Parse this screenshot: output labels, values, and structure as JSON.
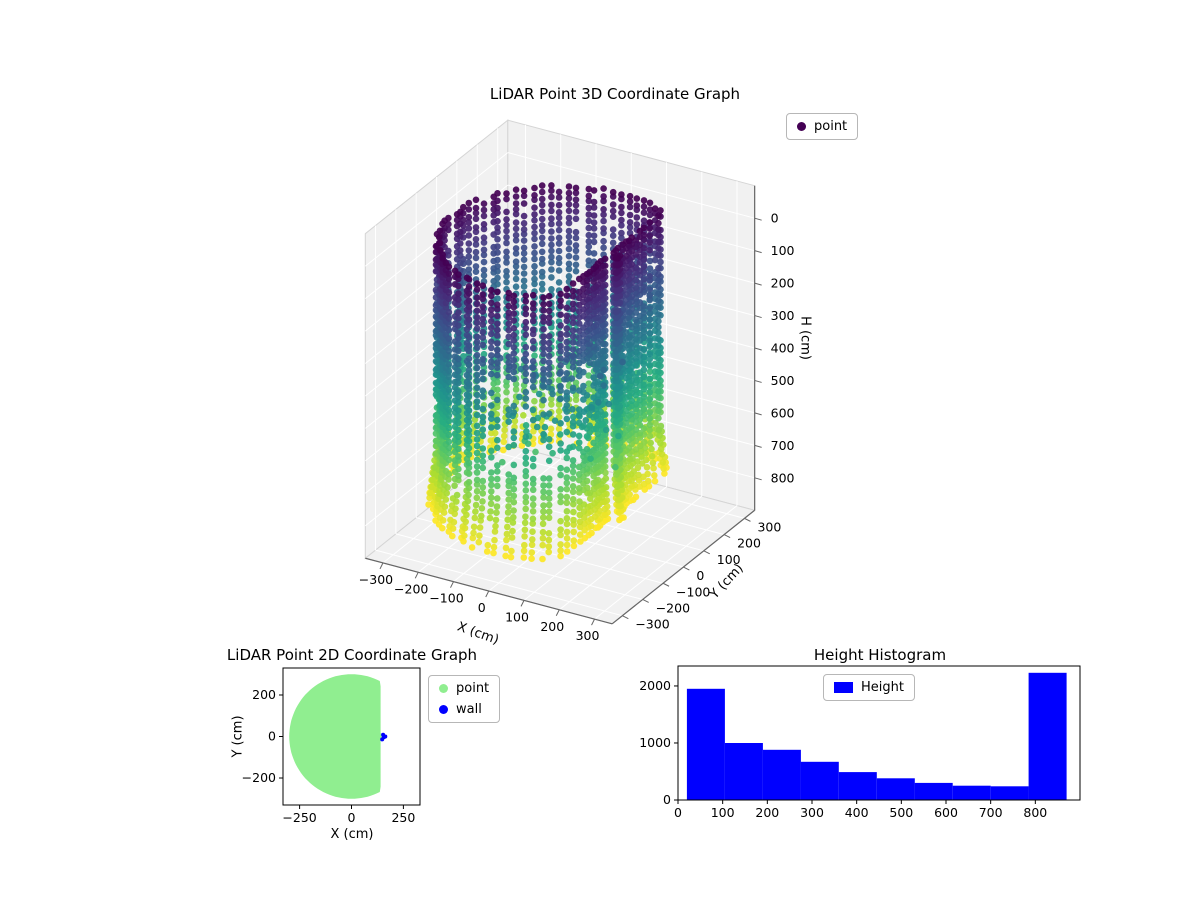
{
  "figure": {
    "background": "#ffffff"
  },
  "chart_data": [
    {
      "type": "scatter3d",
      "title": "LiDAR Point 3D Coordinate Graph",
      "xlabel": "X (cm)",
      "ylabel": "Y (cm)",
      "zlabel": "H (cm)",
      "xlim": [
        -350,
        350
      ],
      "ylim": [
        -350,
        350
      ],
      "hlim": [
        -100,
        900
      ],
      "xticks": [
        -300,
        -200,
        -100,
        0,
        100,
        200,
        300
      ],
      "yticks": [
        -300,
        -200,
        -100,
        0,
        100,
        200,
        300
      ],
      "hticks": [
        0,
        100,
        200,
        300,
        400,
        500,
        600,
        700,
        800
      ],
      "h_axis_inverted": true,
      "legend": [
        {
          "label": "point",
          "color": "#440154"
        }
      ],
      "view": {
        "elev": 22,
        "azim": -60
      },
      "colormap": "viridis",
      "colormap_stops": [
        [
          68,
          1,
          84
        ],
        [
          71,
          44,
          122
        ],
        [
          59,
          81,
          139
        ],
        [
          44,
          113,
          142
        ],
        [
          33,
          144,
          141
        ],
        [
          39,
          173,
          129
        ],
        [
          92,
          200,
          99
        ],
        [
          170,
          220,
          50
        ],
        [
          253,
          231,
          37
        ]
      ],
      "point_cloud": {
        "description": "Cylindrical room scan point cloud, color encodes height H (dark purple at H=0 top, yellow at H=800 bottom)",
        "radius_cm": 300,
        "flat_wall_x_cm": 140,
        "door_bump_x_cm": 165,
        "h_min_cm": 0,
        "h_max_cm": 800,
        "columns": 84,
        "dh_cm": 20,
        "sparse_region": {
          "theta_deg": [
            -95,
            -25
          ],
          "h_cm": [
            260,
            560
          ]
        }
      }
    },
    {
      "type": "scatter2d",
      "title": "LiDAR Point 2D Coordinate Graph",
      "xlabel": "X (cm)",
      "ylabel": "Y (cm)",
      "xlim": [
        -330,
        330
      ],
      "ylim": [
        -330,
        330
      ],
      "xticks": [
        -250,
        0,
        250
      ],
      "yticks": [
        -200,
        0,
        200
      ],
      "legend": [
        {
          "label": "point",
          "color": "#90ee90"
        },
        {
          "label": "wall",
          "color": "#0000ff"
        }
      ],
      "blob": {
        "radius_cm": 300,
        "flat_wall_x_cm": 140,
        "door_bump_x_cm": 165,
        "fill": "#90ee90"
      },
      "wall_points": [
        [
          148,
          -14
        ],
        [
          156,
          -4
        ],
        [
          152,
          8
        ],
        [
          163,
          0
        ]
      ]
    },
    {
      "type": "histogram",
      "title": "Height Histogram",
      "legend": [
        {
          "label": "Height",
          "color": "#0000ff"
        }
      ],
      "bar_color": "#0000ff",
      "bin_edges": [
        20,
        105,
        190,
        275,
        360,
        445,
        530,
        615,
        700,
        785,
        870
      ],
      "counts": [
        1950,
        1000,
        880,
        670,
        490,
        380,
        300,
        250,
        240,
        2230
      ],
      "xticks": [
        0,
        100,
        200,
        300,
        400,
        500,
        600,
        700,
        800
      ],
      "yticks": [
        0,
        1000,
        2000
      ],
      "xlim": [
        0,
        900
      ],
      "ylim": [
        0,
        2350
      ]
    }
  ]
}
